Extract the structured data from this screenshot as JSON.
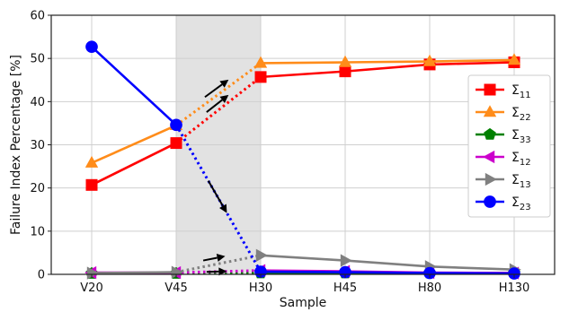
{
  "chart_data": {
    "type": "line",
    "title": "",
    "xlabel": "Sample",
    "ylabel": "Failure Index Percentage [%]",
    "categories": [
      "V20",
      "V45",
      "H30",
      "H45",
      "H80",
      "H130"
    ],
    "ylim": [
      0,
      60
    ],
    "yticks": [
      0,
      10,
      20,
      30,
      40,
      50,
      60
    ],
    "grid": true,
    "legend_position": "right",
    "shaded_region": [
      "V45",
      "H30"
    ],
    "transition_segment": [
      "V45",
      "H30"
    ],
    "series": [
      {
        "name": "Σ11",
        "sub": "11",
        "color": "#ff0000",
        "marker": "square",
        "values": [
          20.7,
          30.4,
          45.7,
          47.0,
          48.6,
          49.1
        ]
      },
      {
        "name": "Σ22",
        "sub": "22",
        "color": "#ff8c1a",
        "marker": "triangle-up",
        "values": [
          25.8,
          34.5,
          48.9,
          49.1,
          49.3,
          49.6
        ]
      },
      {
        "name": "Σ33",
        "sub": "33",
        "color": "#008000",
        "marker": "pentagon",
        "values": [
          0.2,
          0.2,
          0.3,
          0.3,
          0.3,
          0.3
        ]
      },
      {
        "name": "Σ12",
        "sub": "12",
        "color": "#cc00cc",
        "marker": "triangle-left",
        "values": [
          0.4,
          0.4,
          0.9,
          0.7,
          0.4,
          0.3
        ]
      },
      {
        "name": "Σ13",
        "sub": "13",
        "color": "#808080",
        "marker": "triangle-right",
        "values": [
          0.3,
          0.5,
          4.4,
          3.2,
          1.8,
          1.1
        ]
      },
      {
        "name": "Σ23",
        "sub": "23",
        "color": "#0000ff",
        "marker": "circle",
        "values": [
          52.7,
          34.6,
          0.6,
          0.5,
          0.3,
          0.2
        ]
      }
    ]
  }
}
